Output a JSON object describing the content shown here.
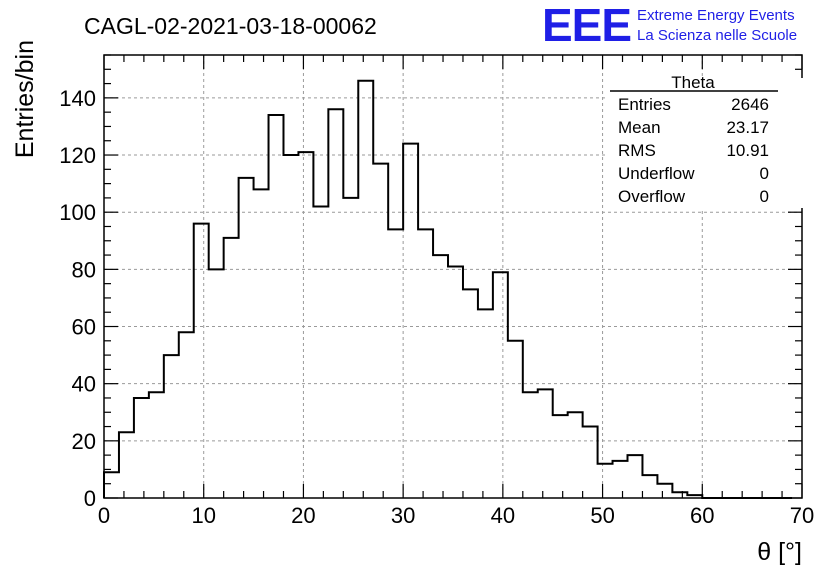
{
  "header": {
    "title": "CAGL-02-2021-03-18-00062",
    "logo_text": "EEE",
    "org_line1": "Extreme Energy Events",
    "org_line2": "La Scienza nelle Scuole"
  },
  "stats_box": {
    "title": "Theta",
    "rows": [
      {
        "label": "Entries",
        "value": "2646"
      },
      {
        "label": "Mean",
        "value": "23.17"
      },
      {
        "label": "RMS",
        "value": "10.91"
      },
      {
        "label": "Underflow",
        "value": "0"
      },
      {
        "label": "Overflow",
        "value": "0"
      }
    ]
  },
  "colors": {
    "brand": "#1f1fe6",
    "line": "#000000",
    "grid": "#9a9a9a"
  },
  "chart_data": {
    "type": "histogram",
    "title": "CAGL-02-2021-03-18-00062",
    "xlabel": "θ [°]",
    "ylabel": "Entries/bin",
    "xlim": [
      0,
      70
    ],
    "ylim": [
      0,
      155
    ],
    "grid": true,
    "bin_width": 1.5,
    "bin_start": 0,
    "values": [
      9,
      23,
      35,
      37,
      50,
      58,
      96,
      80,
      91,
      112,
      108,
      134,
      120,
      121,
      102,
      136,
      105,
      146,
      117,
      94,
      124,
      94,
      85,
      81,
      73,
      66,
      79,
      55,
      37,
      38,
      29,
      30,
      25,
      12,
      13,
      15,
      8,
      5,
      2,
      1,
      0,
      0,
      0,
      0,
      0,
      0
    ],
    "x_ticks": [
      "0",
      "10",
      "20",
      "30",
      "40",
      "50",
      "60",
      "70"
    ],
    "y_ticks": [
      "0",
      "20",
      "40",
      "60",
      "80",
      "100",
      "120",
      "140"
    ]
  }
}
